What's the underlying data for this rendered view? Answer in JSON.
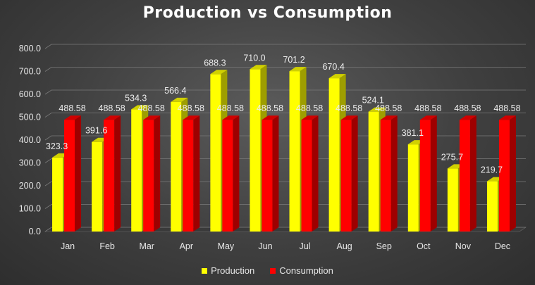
{
  "chart_data": {
    "type": "bar",
    "title": "Production vs Consumption",
    "categories": [
      "Jan",
      "Feb",
      "Mar",
      "Apr",
      "May",
      "Jun",
      "Jul",
      "Aug",
      "Sep",
      "Oct",
      "Nov",
      "Dec"
    ],
    "series": [
      {
        "name": "Production",
        "color": "#ffff00",
        "values": [
          323.3,
          391.6,
          534.3,
          566.4,
          688.3,
          710.0,
          701.2,
          670.4,
          524.1,
          381.1,
          275.7,
          219.7
        ],
        "labels": [
          "323.3",
          "391.6",
          "534.3",
          "566.4",
          "688.3",
          "710.0",
          "701.2",
          "670.4",
          "524.1",
          "381.1",
          "275.7",
          "219.7"
        ]
      },
      {
        "name": "Consumption",
        "color": "#ff0000",
        "values": [
          488.58,
          488.58,
          488.58,
          488.58,
          488.58,
          488.58,
          488.58,
          488.58,
          488.58,
          488.58,
          488.58,
          488.58
        ],
        "labels": [
          "488.58",
          "488.58",
          "488.58",
          "488.58",
          "488.58",
          "488.58",
          "488.58",
          "488.58",
          "488.58",
          "488.58",
          "488.58",
          "488.58"
        ]
      }
    ],
    "ylim": [
      0,
      800
    ],
    "yticks": [
      "0.0",
      "100.0",
      "200.0",
      "300.0",
      "400.0",
      "500.0",
      "600.0",
      "700.0",
      "800.0"
    ],
    "xlabel": "",
    "ylabel": "",
    "grid": true,
    "legend_position": "bottom",
    "style": "3d-clustered-column"
  }
}
